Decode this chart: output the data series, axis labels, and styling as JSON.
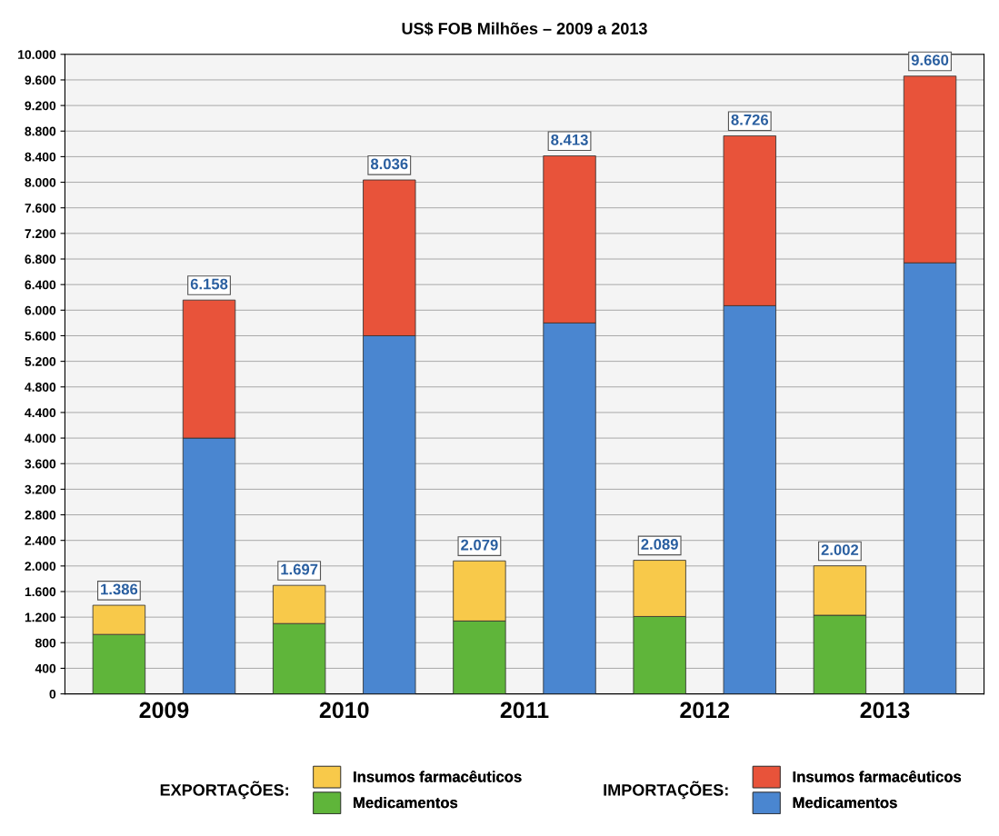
{
  "chart_data": {
    "type": "bar",
    "title": "US$ FOB Milhões – 2009 a 2013",
    "stacked": true,
    "categories": [
      "2009",
      null,
      "2010",
      null,
      "2011",
      null,
      "2012",
      null,
      "2013",
      null
    ],
    "series": [
      {
        "name": "Medicamentos",
        "color": "#5fb53a",
        "values": [
          930,
          null,
          1100,
          null,
          1140,
          null,
          1210,
          null,
          1230,
          null
        ]
      },
      {
        "name": "Insumos farmacêuticos",
        "color": "#f8c94a",
        "values": [
          456,
          null,
          597,
          null,
          939,
          null,
          879,
          null,
          772,
          null
        ]
      },
      {
        "name": "Medicamentos",
        "color": "#4a86d0",
        "values": [
          null,
          4000,
          null,
          5600,
          null,
          5800,
          null,
          6070,
          null,
          6740
        ]
      },
      {
        "name": "Insumos farmacêuticos",
        "color": "#e8533a",
        "values": [
          null,
          2158,
          null,
          2436,
          null,
          2613,
          null,
          2656,
          null,
          2920
        ]
      }
    ],
    "totals": [
      "1.386",
      "6.158",
      "1.697",
      "8.036",
      "2.079",
      "8.413",
      "2.089",
      "8.726",
      "2.002",
      "9.660"
    ],
    "ylim": [
      0,
      10000
    ],
    "yticks": [
      0,
      400,
      800,
      {
        "value": 1200,
        "label": "1.200"
      },
      {
        "value": 1600,
        "label": "1.600"
      },
      {
        "value": 2000,
        "label": "2.000"
      },
      {
        "value": 2400,
        "label": "2.400"
      },
      {
        "value": 2800,
        "label": "2.800"
      },
      {
        "value": 3200,
        "label": "3.200"
      },
      {
        "value": 3600,
        "label": "3.600"
      },
      {
        "value": 4000,
        "label": "4.000"
      },
      {
        "value": 4400,
        "label": "4.400"
      },
      {
        "value": 4800,
        "label": "4.800"
      },
      {
        "value": 5200,
        "label": "5.200"
      },
      {
        "value": 5600,
        "label": "5.600"
      },
      {
        "value": 6000,
        "label": "6.000"
      },
      {
        "value": 6400,
        "label": "6.400"
      },
      {
        "value": 6800,
        "label": "6.800"
      },
      {
        "value": 7200,
        "label": "7.200"
      },
      {
        "value": 7600,
        "label": "7.600"
      },
      {
        "value": 8000,
        "label": "8.000"
      },
      {
        "value": 8400,
        "label": "8.400"
      },
      {
        "value": 8800,
        "label": "8.800"
      },
      {
        "value": 9200,
        "label": "9.200"
      },
      {
        "value": 9600,
        "label": "9.600"
      },
      {
        "value": 10000,
        "label": "10.000"
      }
    ],
    "grid": "y",
    "legend": "bottom",
    "annotations": [
      "EXPORTAÇÕES:",
      "IMPORTAÇÕES:"
    ]
  }
}
